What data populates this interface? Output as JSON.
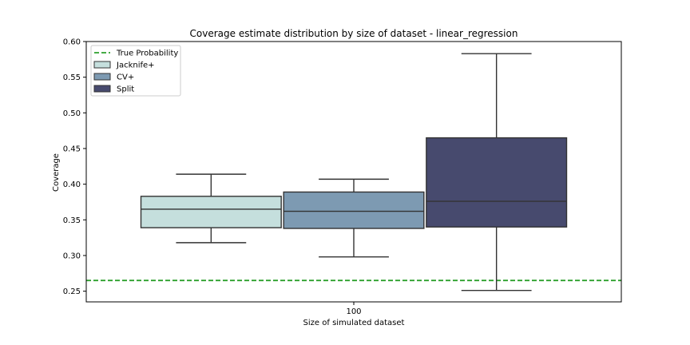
{
  "chart_data": {
    "type": "box",
    "title": "Coverage estimate distribution by size of dataset - linear_regression",
    "xlabel": "Size of simulated dataset",
    "ylabel": "Coverage",
    "categories": [
      "100"
    ],
    "ylim": [
      0.235,
      0.6
    ],
    "yticks": [
      "0.25",
      "0.30",
      "0.35",
      "0.40",
      "0.45",
      "0.50",
      "0.55",
      "0.60"
    ],
    "grid": false,
    "legend_position": "top-left",
    "reference_line": {
      "name": "True Probability",
      "value": 0.265,
      "color": "#2ca02c",
      "style": "dashed"
    },
    "series": [
      {
        "name": "Jacknife+",
        "color": "#c5dfdd",
        "whisker_low": 0.318,
        "q1": 0.339,
        "median": 0.365,
        "q3": 0.383,
        "whisker_high": 0.414
      },
      {
        "name": "CV+",
        "color": "#7d9ab2",
        "whisker_low": 0.298,
        "q1": 0.338,
        "median": 0.362,
        "q3": 0.389,
        "whisker_high": 0.407
      },
      {
        "name": "Split",
        "color": "#474a6e",
        "whisker_low": 0.251,
        "q1": 0.34,
        "median": 0.376,
        "q3": 0.465,
        "whisker_high": 0.583
      }
    ]
  }
}
